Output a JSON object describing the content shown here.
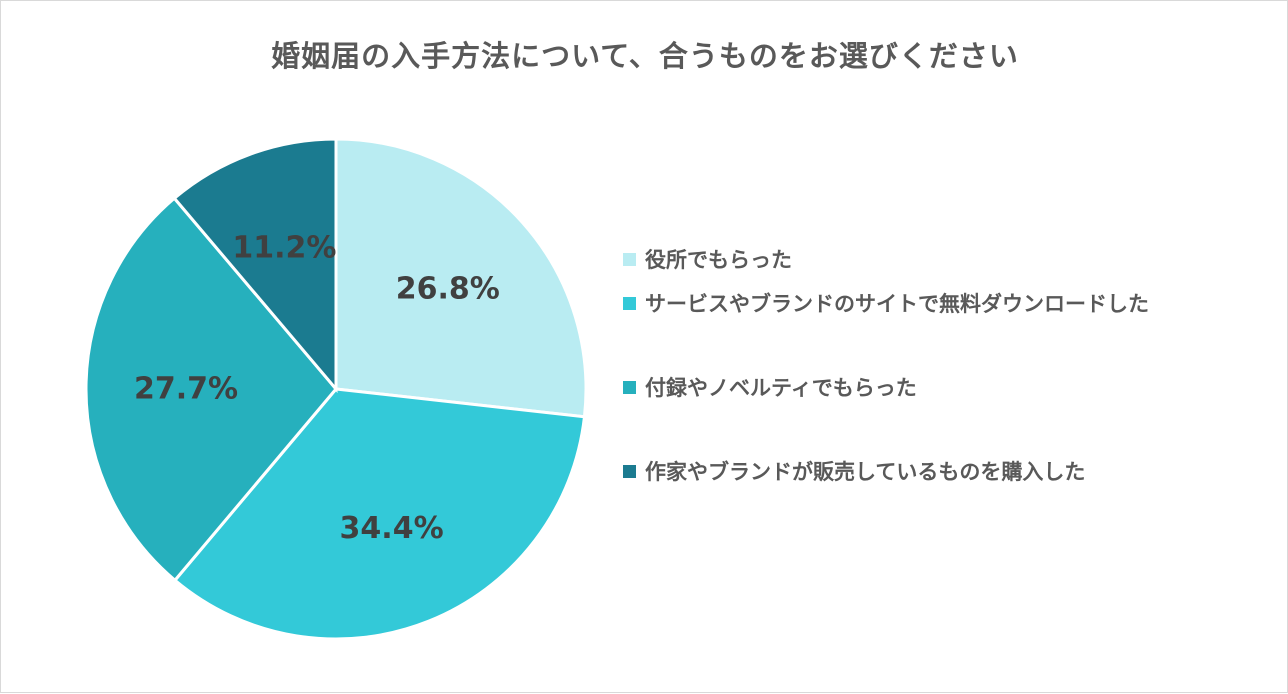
{
  "chart_data": {
    "type": "pie",
    "title": "婚姻届の入手方法について、合うものをお選びください",
    "categories": [
      "役所でもらった",
      "サービスやブランドのサイトで無料ダウンロードした",
      "付録やノベルティでもらった",
      "作家やブランドが販売しているものを購入した"
    ],
    "values": [
      26.8,
      34.4,
      27.7,
      11.2
    ],
    "data_labels": [
      "26.8%",
      "34.4%",
      "27.7%",
      "11.2%"
    ],
    "colors": [
      "#b9ecf2",
      "#33c9d8",
      "#26b0bd",
      "#1b7b90"
    ],
    "legend_position": "right"
  }
}
